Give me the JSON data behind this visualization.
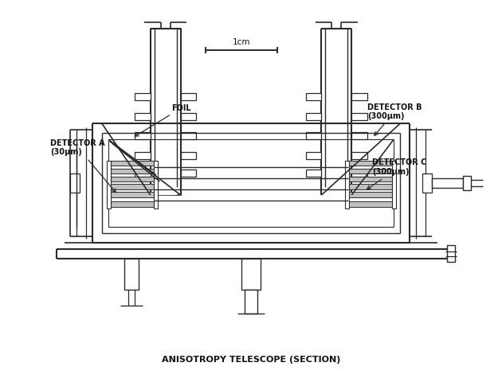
{
  "title": "ANISOTROPY TELESCOPE (SECTION)",
  "title_fontsize": 8,
  "background_color": "#ffffff",
  "line_color": "#2a2a2a",
  "label_color": "#111111",
  "scale_bar_label": "1cm",
  "labels": {
    "foil": "FOIL",
    "detector_a": "DETECTOR A\n(30μm)",
    "detector_b": "DETECTOR B\n(300μm)",
    "detector_c": "DETECTOR C\n(300μm)"
  },
  "label_fontsize": 7,
  "figsize": [
    6.3,
    4.8
  ],
  "dpi": 100
}
